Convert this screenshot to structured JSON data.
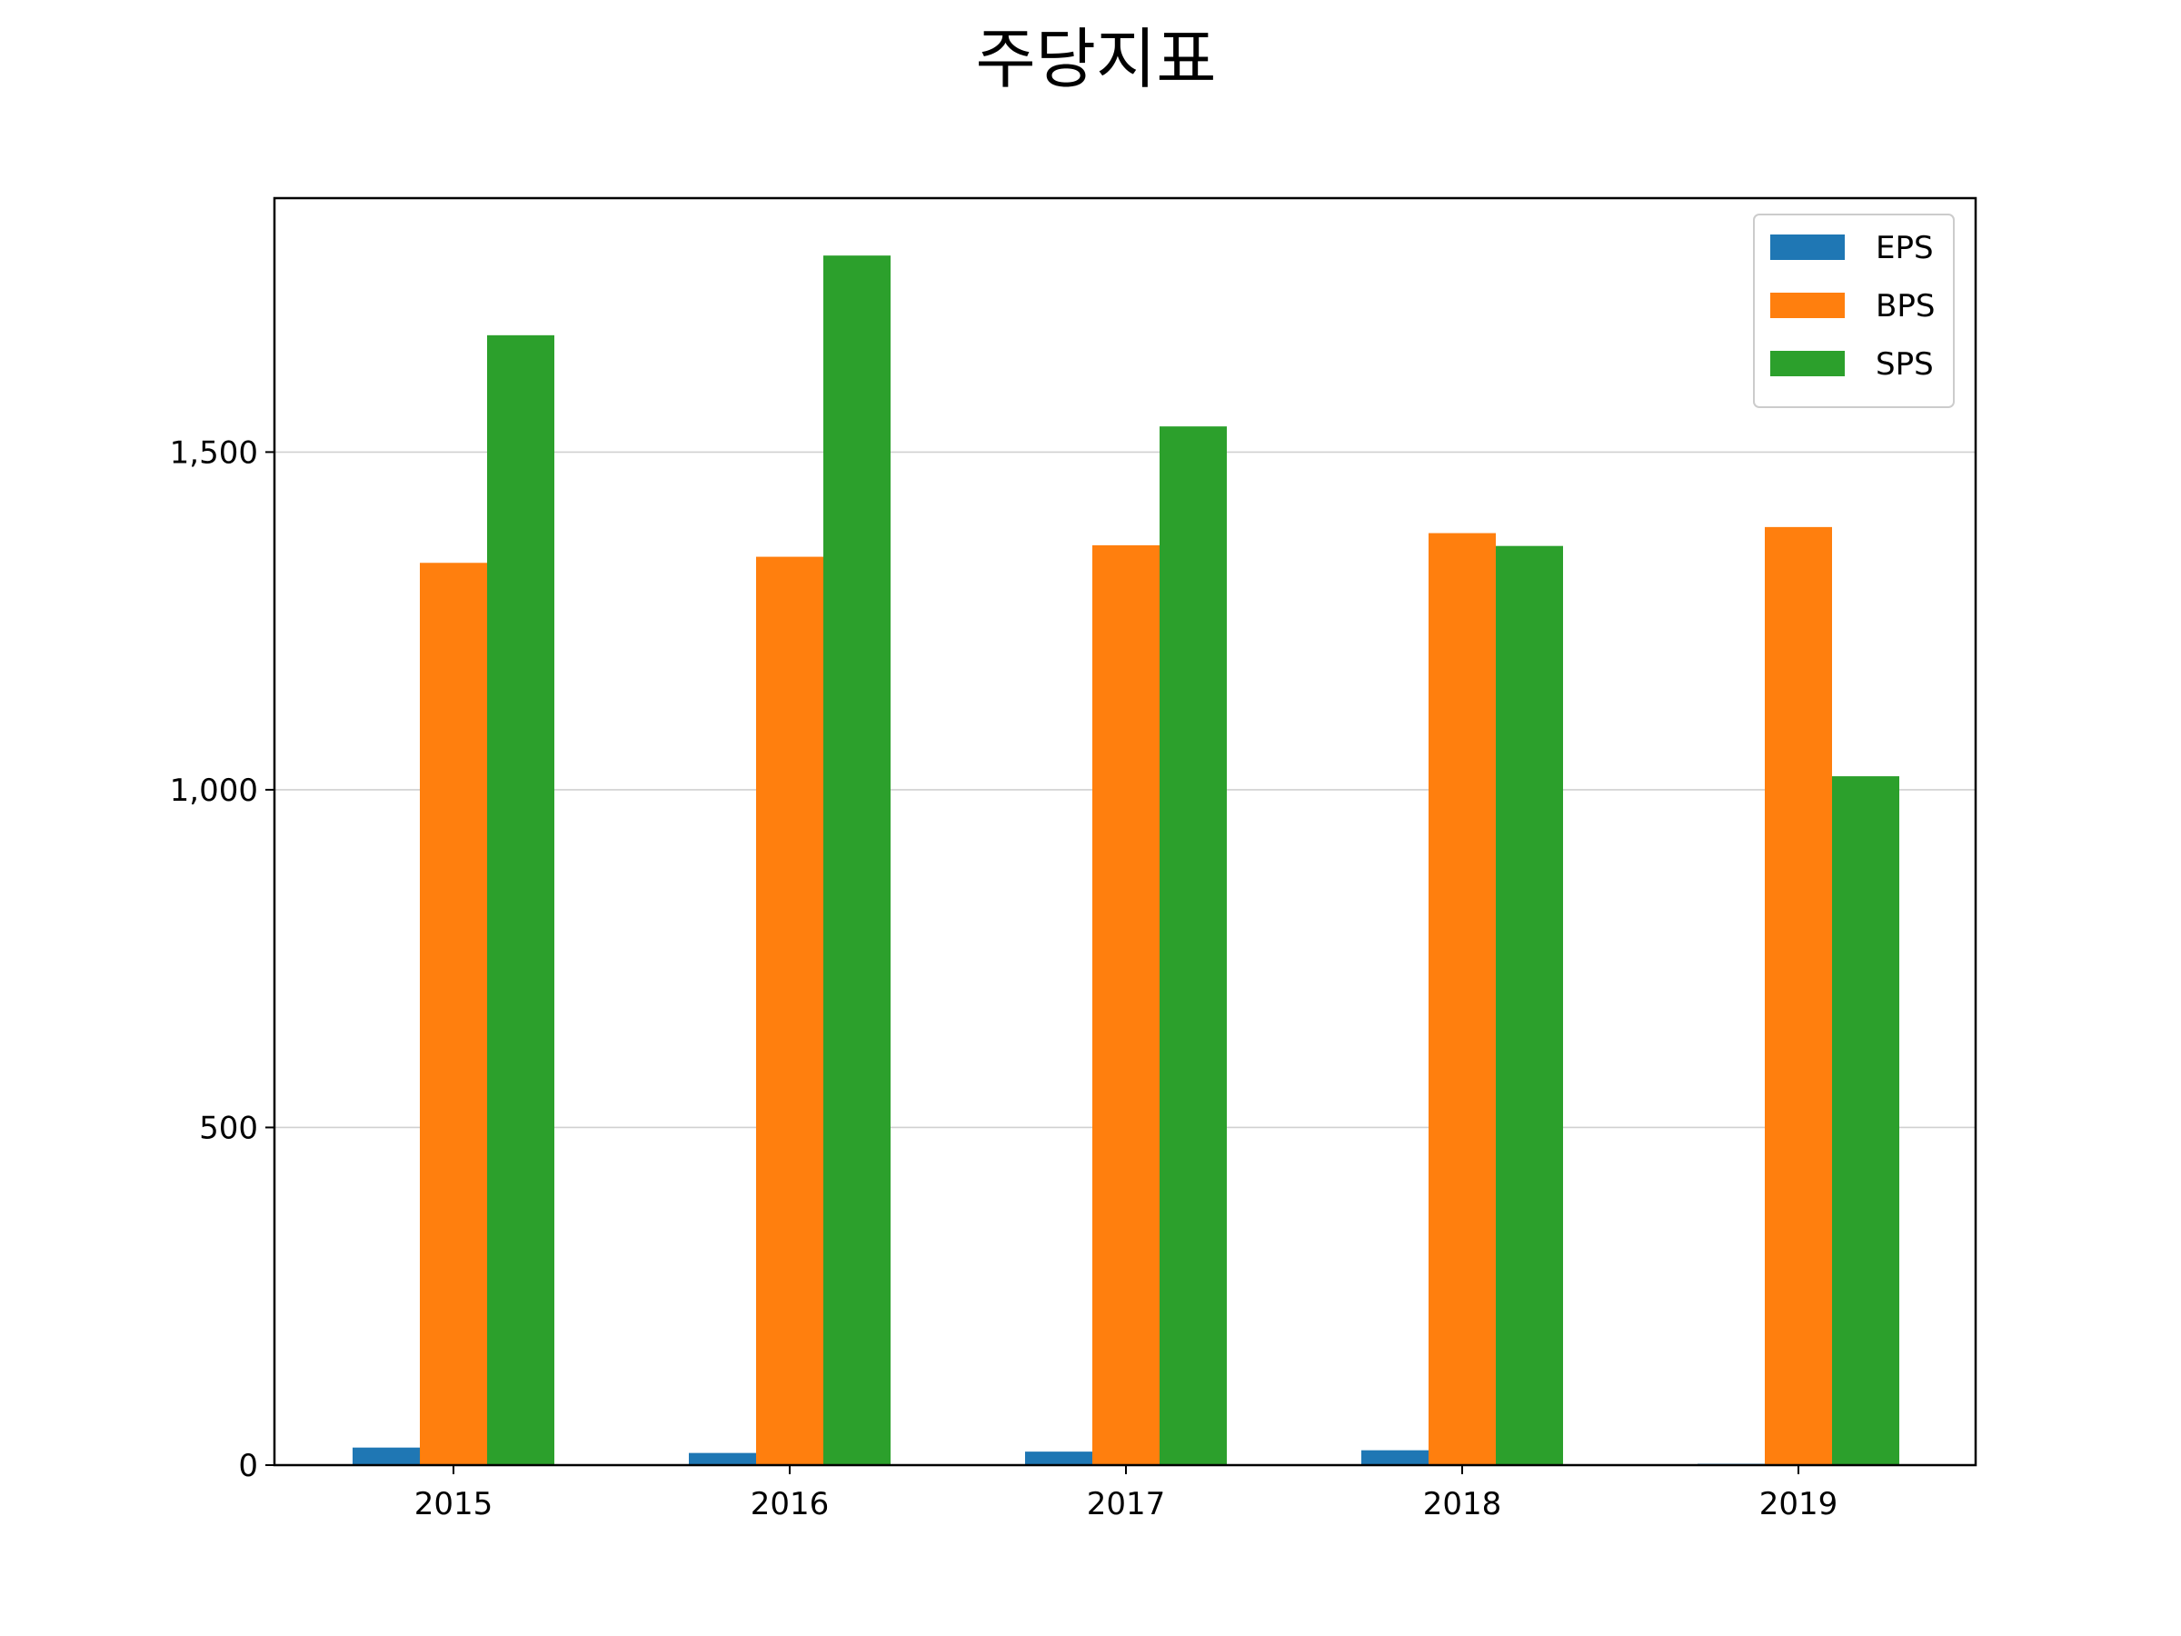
{
  "chart_data": {
    "type": "bar",
    "title": "주당지표",
    "xlabel": "",
    "ylabel": "",
    "categories": [
      "2015",
      "2016",
      "2017",
      "2018",
      "2019"
    ],
    "series": [
      {
        "name": "EPS",
        "color": "#1f77b4",
        "values": [
          26,
          18,
          20,
          22,
          2
        ]
      },
      {
        "name": "BPS",
        "color": "#ff7f0e",
        "values": [
          1336,
          1345,
          1362,
          1380,
          1389
        ]
      },
      {
        "name": "SPS",
        "color": "#2ca02c",
        "values": [
          1673,
          1791,
          1538,
          1361,
          1020
        ]
      }
    ],
    "ylim": [
      0,
      1876
    ],
    "yticks": [
      0,
      500,
      1000,
      1500
    ],
    "ytick_labels": [
      "0",
      "500",
      "1,000",
      "1,500"
    ],
    "grid": "y",
    "legend_position": "top-right"
  }
}
